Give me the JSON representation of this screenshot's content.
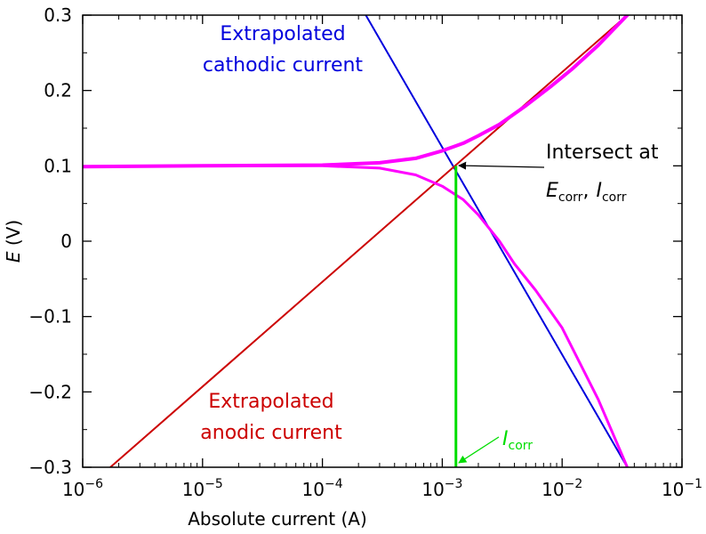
{
  "chart_data": {
    "type": "line",
    "xlabel": "Absolute current (A)",
    "ylabel_main": "E",
    "ylabel_unit": " (V)",
    "x_scale": "log",
    "xlim": [
      1e-06,
      0.1
    ],
    "ylim": [
      -0.3,
      0.3
    ],
    "x_ticks": [
      {
        "value": 1e-06,
        "base": "10",
        "exp": "−6"
      },
      {
        "value": 1e-05,
        "base": "10",
        "exp": "−5"
      },
      {
        "value": 0.0001,
        "base": "10",
        "exp": "−4"
      },
      {
        "value": 0.001,
        "base": "10",
        "exp": "−3"
      },
      {
        "value": 0.01,
        "base": "10",
        "exp": "−2"
      },
      {
        "value": 0.1,
        "base": "10",
        "exp": "−1"
      }
    ],
    "y_ticks": [
      {
        "value": 0.3,
        "label": "0.3"
      },
      {
        "value": 0.2,
        "label": "0.2"
      },
      {
        "value": 0.1,
        "label": "0.1"
      },
      {
        "value": 0.0,
        "label": "0"
      },
      {
        "value": -0.1,
        "label": "−0.1"
      },
      {
        "value": -0.2,
        "label": "−0.2"
      },
      {
        "value": -0.3,
        "label": "−0.3"
      }
    ],
    "grid": false,
    "E_corr": 0.1,
    "I_corr": 0.0013,
    "series": [
      {
        "role": "cathodic_tafel",
        "color": "#0000dd",
        "points": [
          [
            0.00023,
            0.3
          ],
          [
            0.035,
            -0.3
          ]
        ]
      },
      {
        "role": "anodic_tafel",
        "color": "#cc0000",
        "points": [
          [
            1.7e-06,
            -0.3
          ],
          [
            0.035,
            0.3
          ]
        ]
      },
      {
        "role": "measured_upper",
        "color": "#ff00ff",
        "points": [
          [
            1e-06,
            0.099
          ],
          [
            1e-05,
            0.1
          ],
          [
            0.0001,
            0.101
          ],
          [
            0.0003,
            0.104
          ],
          [
            0.0006,
            0.11
          ],
          [
            0.001,
            0.12
          ],
          [
            0.0015,
            0.13
          ],
          [
            0.002,
            0.14
          ],
          [
            0.003,
            0.155
          ],
          [
            0.005,
            0.18
          ],
          [
            0.008,
            0.205
          ],
          [
            0.012,
            0.228
          ],
          [
            0.02,
            0.26
          ],
          [
            0.035,
            0.3
          ]
        ]
      },
      {
        "role": "measured_lower",
        "color": "#ff00ff",
        "points": [
          [
            1e-06,
            0.099
          ],
          [
            1e-05,
            0.1
          ],
          [
            0.0001,
            0.1
          ],
          [
            0.0003,
            0.097
          ],
          [
            0.0006,
            0.088
          ],
          [
            0.001,
            0.073
          ],
          [
            0.0015,
            0.055
          ],
          [
            0.002,
            0.035
          ],
          [
            0.003,
            0.0
          ],
          [
            0.004,
            -0.03
          ],
          [
            0.006,
            -0.065
          ],
          [
            0.01,
            -0.115
          ],
          [
            0.02,
            -0.21
          ],
          [
            0.035,
            -0.3
          ]
        ]
      }
    ],
    "icorr_line_color": "#00dd00",
    "annotations": {
      "cathodic_line1": "Extrapolated",
      "cathodic_line2": "cathodic current",
      "anodic_line1": "Extrapolated",
      "anodic_line2": "anodic current",
      "intersect_line1": "Intersect at",
      "e_sym": "E",
      "i_sym": "I",
      "corr_sub": "corr",
      "comma": ",",
      "icorr_sym": "I",
      "icorr_sub": "corr"
    }
  }
}
